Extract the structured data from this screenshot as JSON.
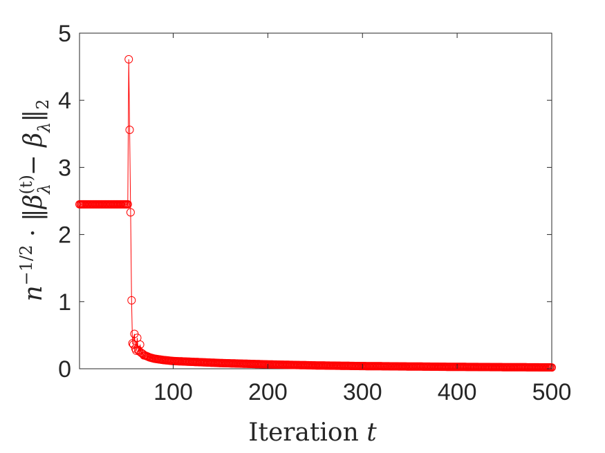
{
  "chart_data": {
    "type": "line",
    "xlabel": "Iteration",
    "xlabel_var": "t",
    "ylabel_parts": {
      "n": "n",
      "exp": "−1/2",
      "dot": " · ‖",
      "beta": "β",
      "hat": "^",
      "sup": "(t)",
      "lambda": "λ",
      "minus": " − ",
      "close": "‖",
      "sub2": "2"
    },
    "xlim": [
      1,
      500
    ],
    "ylim": [
      0,
      5
    ],
    "xticks": [
      100,
      200,
      300,
      400,
      500
    ],
    "yticks": [
      0,
      1,
      2,
      3,
      4,
      5
    ],
    "grid": false,
    "legend": "none",
    "series": [
      {
        "color": "#ff0000",
        "marker": "circle-open",
        "plateau": {
          "from": 1,
          "to": 52,
          "value": 2.45
        },
        "spike": [
          {
            "x": 53,
            "y": 4.61
          },
          {
            "x": 54,
            "y": 3.56
          },
          {
            "x": 55,
            "y": 2.33
          },
          {
            "x": 56,
            "y": 1.02
          },
          {
            "x": 57,
            "y": 0.38
          },
          {
            "x": 58,
            "y": 0.36
          },
          {
            "x": 59,
            "y": 0.52
          },
          {
            "x": 60,
            "y": 0.3
          },
          {
            "x": 61,
            "y": 0.27
          },
          {
            "x": 62,
            "y": 0.46
          },
          {
            "x": 63,
            "y": 0.28
          },
          {
            "x": 64,
            "y": 0.26
          },
          {
            "x": 65,
            "y": 0.36
          },
          {
            "x": 66,
            "y": 0.24
          },
          {
            "x": 67,
            "y": 0.23
          },
          {
            "x": 68,
            "y": 0.22
          }
        ],
        "tail_anchors": [
          {
            "x": 70,
            "y": 0.2
          },
          {
            "x": 75,
            "y": 0.17
          },
          {
            "x": 80,
            "y": 0.15
          },
          {
            "x": 90,
            "y": 0.13
          },
          {
            "x": 100,
            "y": 0.115
          },
          {
            "x": 150,
            "y": 0.085
          },
          {
            "x": 200,
            "y": 0.065
          },
          {
            "x": 250,
            "y": 0.05
          },
          {
            "x": 300,
            "y": 0.04
          },
          {
            "x": 400,
            "y": 0.028
          },
          {
            "x": 500,
            "y": 0.02
          }
        ]
      }
    ]
  }
}
